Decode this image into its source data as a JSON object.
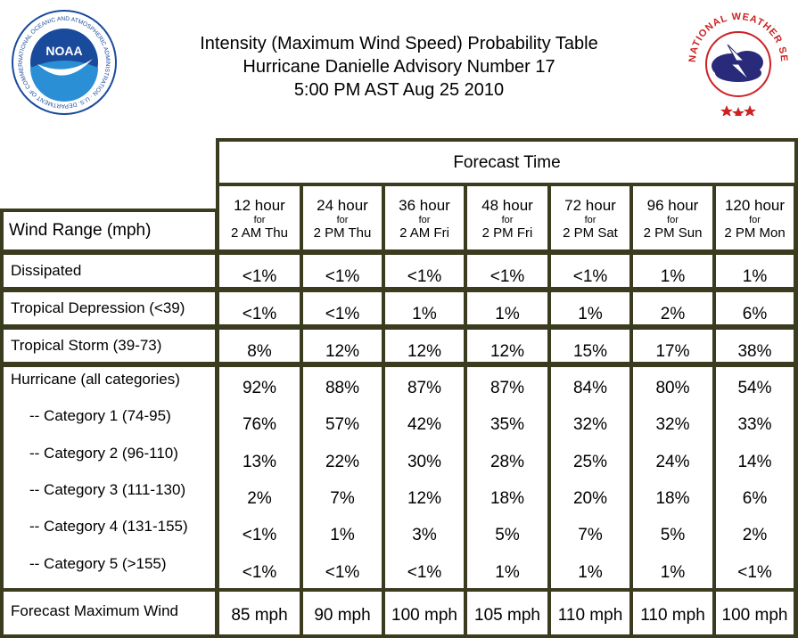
{
  "header": {
    "title_line1": "Intensity (Maximum Wind Speed) Probability Table",
    "title_line2": "Hurricane Danielle Advisory Number 17",
    "title_line3": "5:00 PM AST Aug 25 2010",
    "noaa_logo_text": "NOAA",
    "noaa_ring_text": "NATIONAL OCEANIC AND ATMOSPHERIC ADMINISTRATION · U.S. DEPARTMENT OF COMMERCE",
    "nws_ring_text": "NATIONAL WEATHER SERVICE"
  },
  "table": {
    "forecast_time_label": "Forecast Time",
    "wind_range_label": "Wind Range (mph)",
    "columns": [
      {
        "hour": "12 hour",
        "for": "for",
        "time": "2 AM Thu"
      },
      {
        "hour": "24 hour",
        "for": "for",
        "time": "2 PM Thu"
      },
      {
        "hour": "36 hour",
        "for": "for",
        "time": "2 AM Fri"
      },
      {
        "hour": "48 hour",
        "for": "for",
        "time": "2 PM Fri"
      },
      {
        "hour": "72 hour",
        "for": "for",
        "time": "2 PM Sat"
      },
      {
        "hour": "96 hour",
        "for": "for",
        "time": "2 PM Sun"
      },
      {
        "hour": "120 hour",
        "for": "for",
        "time": "2 PM Mon"
      }
    ],
    "rows": [
      {
        "label": "Dissipated",
        "values": [
          "<1%",
          "<1%",
          "<1%",
          "<1%",
          "<1%",
          "1%",
          "1%"
        ]
      },
      {
        "label": "Tropical Depression (<39)",
        "values": [
          "<1%",
          "<1%",
          "1%",
          "1%",
          "1%",
          "2%",
          "6%"
        ]
      },
      {
        "label": "Tropical Storm (39-73)",
        "values": [
          "8%",
          "12%",
          "12%",
          "12%",
          "15%",
          "17%",
          "38%"
        ]
      },
      {
        "label": "Hurricane (all categories)",
        "values": [
          "92%",
          "88%",
          "87%",
          "87%",
          "84%",
          "80%",
          "54%"
        ]
      },
      {
        "label": "-- Category 1 (74-95)",
        "values": [
          "76%",
          "57%",
          "42%",
          "35%",
          "32%",
          "32%",
          "33%"
        ]
      },
      {
        "label": "-- Category 2 (96-110)",
        "values": [
          "13%",
          "22%",
          "30%",
          "28%",
          "25%",
          "24%",
          "14%"
        ]
      },
      {
        "label": "-- Category 3 (111-130)",
        "values": [
          "2%",
          "7%",
          "12%",
          "18%",
          "20%",
          "18%",
          "6%"
        ]
      },
      {
        "label": "-- Category 4 (131-155)",
        "values": [
          "<1%",
          "1%",
          "3%",
          "5%",
          "7%",
          "5%",
          "2%"
        ]
      },
      {
        "label": "-- Category 5 (>155)",
        "values": [
          "<1%",
          "<1%",
          "<1%",
          "1%",
          "1%",
          "1%",
          "<1%"
        ]
      },
      {
        "label": "Forecast Maximum Wind",
        "values": [
          "85 mph",
          "90 mph",
          "100 mph",
          "105 mph",
          "110 mph",
          "110 mph",
          "100 mph"
        ]
      }
    ]
  },
  "colors": {
    "border": "#3b3b1f",
    "noaa_blue": "#1a4a9c",
    "nws_red": "#cc2222"
  }
}
